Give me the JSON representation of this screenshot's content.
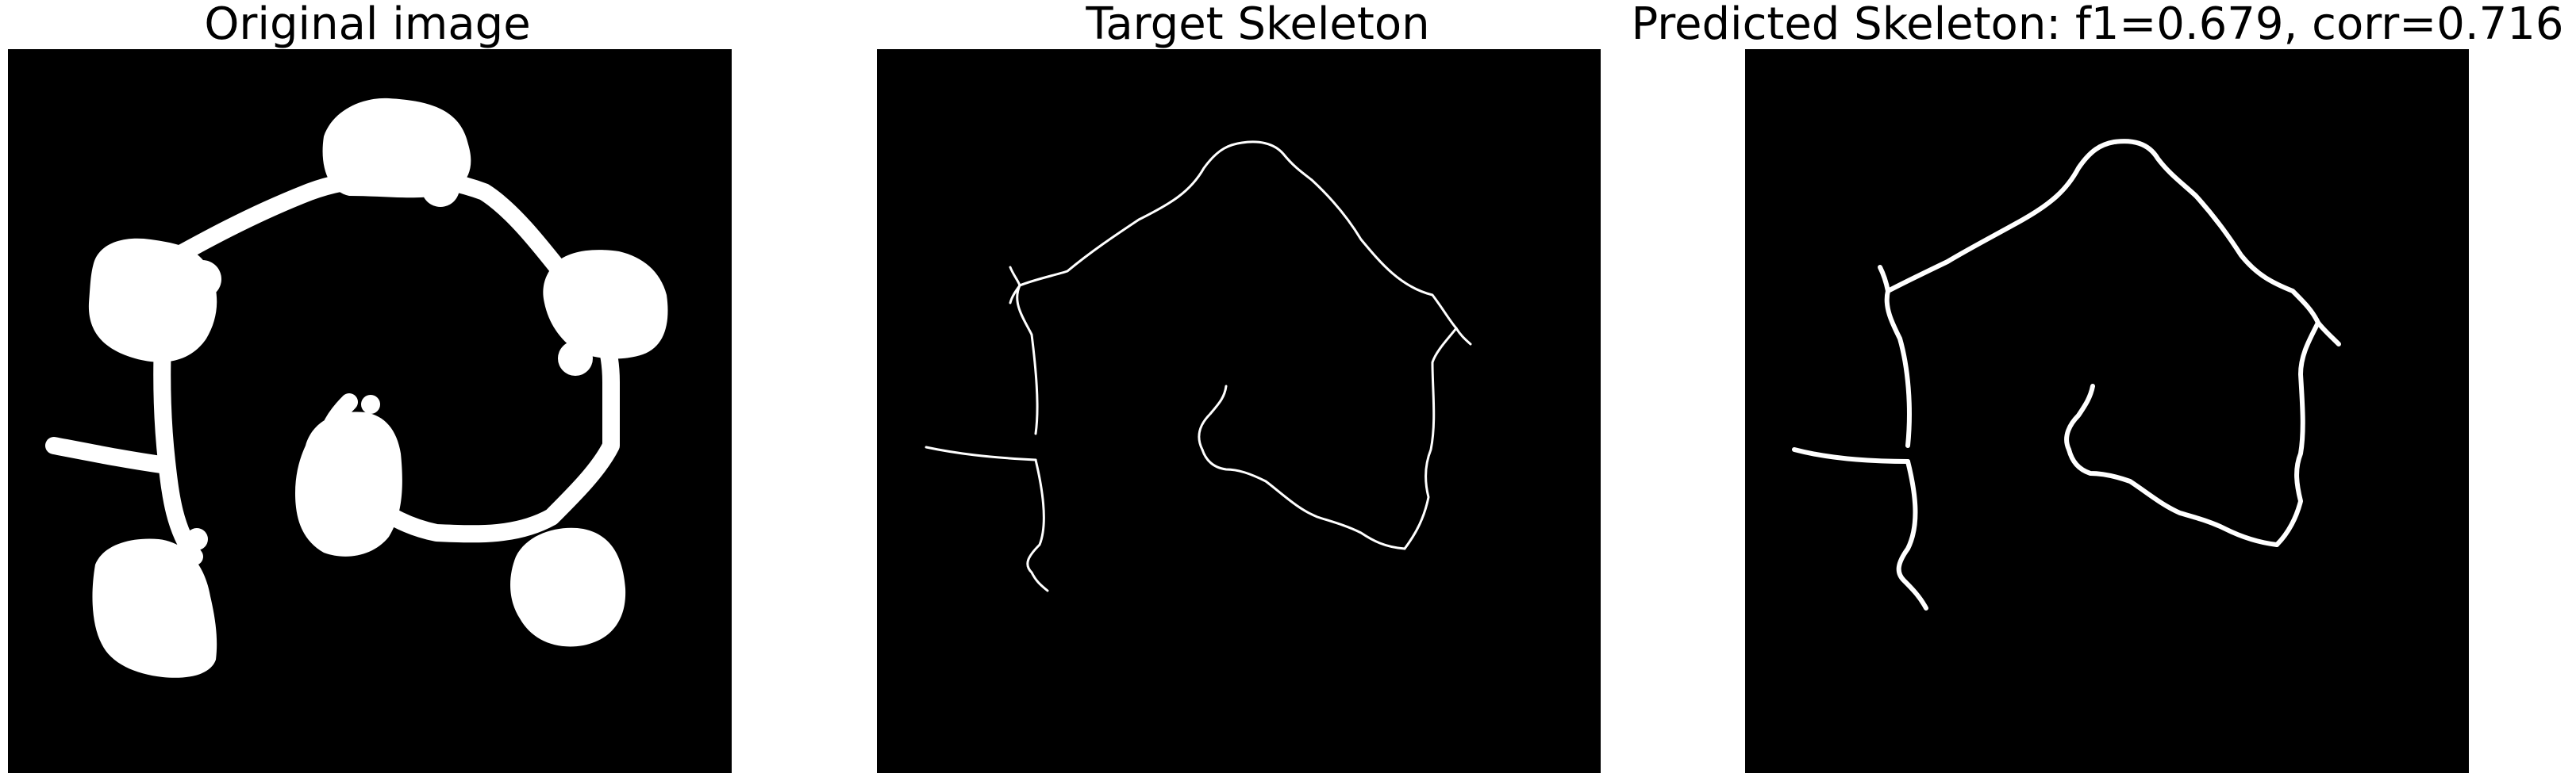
{
  "panels": {
    "original": {
      "title": "Original image"
    },
    "target": {
      "title": "Target Skeleton"
    },
    "predicted": {
      "title": "Predicted Skeleton: f1=0.679, corr=0.716"
    }
  },
  "colors": {
    "background": "#000000",
    "foreground": "#ffffff"
  }
}
